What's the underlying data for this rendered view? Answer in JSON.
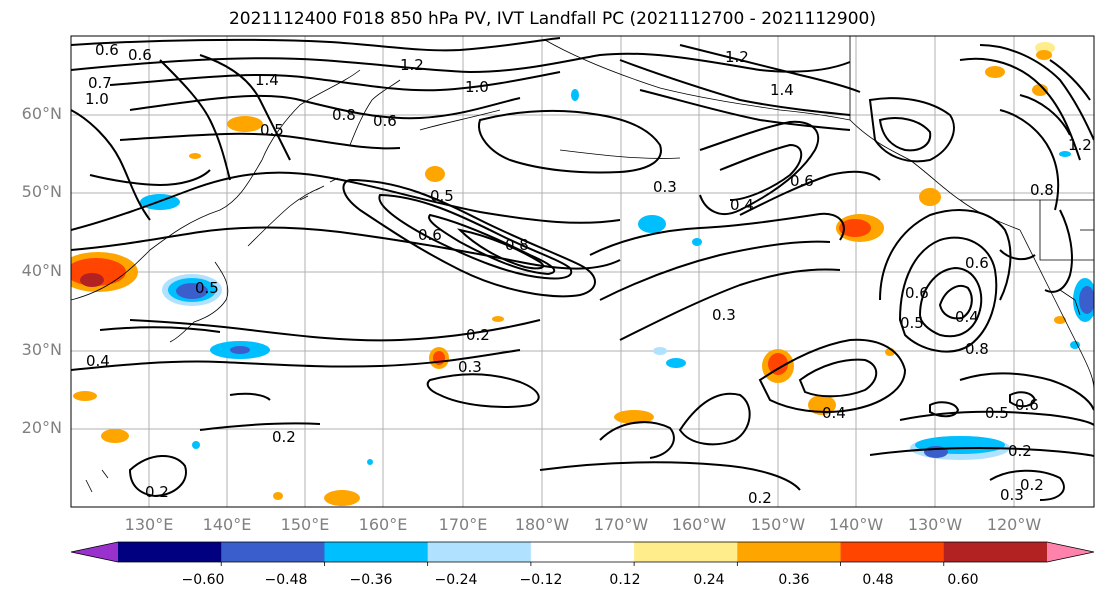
{
  "title": "2021112400 F018 850 hPa PV, IVT Landfall PC (2021112700 - 2021112900)",
  "lat_labels": [
    "60°N",
    "50°N",
    "40°N",
    "30°N",
    "20°N"
  ],
  "lon_labels": [
    "130°E",
    "140°E",
    "150°E",
    "160°E",
    "170°E",
    "180°W",
    "170°W",
    "160°W",
    "150°W",
    "140°W",
    "130°W",
    "120°W"
  ],
  "colorbar": {
    "ticks": [
      "−0.60",
      "−0.48",
      "−0.36",
      "−0.24",
      "−0.12",
      "0.12",
      "0.24",
      "0.36",
      "0.48",
      "0.60"
    ],
    "colors": [
      "#9932cc",
      "#000080",
      "#3a5fcd",
      "#00bfff",
      "#b0e2ff",
      "#ffffff",
      "#ffec8b",
      "#ffa500",
      "#ff4500",
      "#b22222",
      "#ff82ab"
    ]
  },
  "contour_labels": [
    "0.6",
    "0.6",
    "0.7",
    "1.0",
    "1.4",
    "1.2",
    "1.0",
    "1.2",
    "1.4",
    "0.5",
    "0.8",
    "0.6",
    "0.5",
    "0.6",
    "0.8",
    "0.5",
    "0.4",
    "0.6",
    "0.3",
    "0.3",
    "0.2",
    "0.3",
    "0.4",
    "0.6",
    "0.5",
    "0.6",
    "0.4",
    "0.8",
    "0.5",
    "0.6",
    "0.2",
    "0.2",
    "0.2",
    "0.3",
    "0.4",
    "0.2",
    "0.2",
    "1.2",
    "0.8"
  ]
}
